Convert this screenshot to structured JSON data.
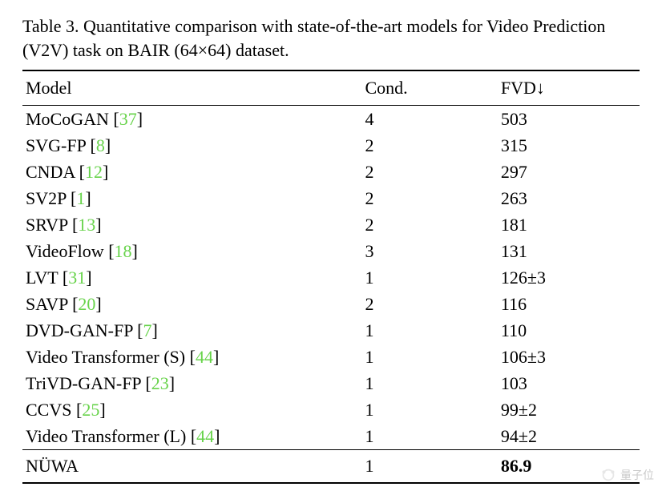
{
  "caption": {
    "prefix": "Table 3.",
    "text": "Quantitative comparison with state-of-the-art models for Video Prediction (V2V) task on BAIR (64×64) dataset."
  },
  "columns": {
    "model": "Model",
    "cond": "Cond.",
    "fvd": "FVD↓"
  },
  "ref_color": "#67d34a",
  "text_color": "#000000",
  "background_color": "#ffffff",
  "font_family": "Times New Roman",
  "font_size_pt": 16,
  "column_widths_pct": [
    55,
    22,
    23
  ],
  "rows": [
    {
      "model": "MoCoGAN",
      "ref": "37",
      "cond": "4",
      "fvd": "503"
    },
    {
      "model": "SVG-FP",
      "ref": "8",
      "cond": "2",
      "fvd": "315"
    },
    {
      "model": "CNDA",
      "ref": "12",
      "cond": "2",
      "fvd": "297"
    },
    {
      "model": "SV2P",
      "ref": "1",
      "cond": "2",
      "fvd": "263"
    },
    {
      "model": "SRVP",
      "ref": "13",
      "cond": "2",
      "fvd": "181"
    },
    {
      "model": "VideoFlow",
      "ref": "18",
      "cond": "3",
      "fvd": "131"
    },
    {
      "model": "LVT",
      "ref": "31",
      "cond": "1",
      "fvd": "126±3"
    },
    {
      "model": "SAVP",
      "ref": "20",
      "cond": "2",
      "fvd": "116"
    },
    {
      "model": "DVD-GAN-FP",
      "ref": "7",
      "cond": "1",
      "fvd": "110"
    },
    {
      "model": "Video Transformer (S)",
      "ref": "44",
      "cond": "1",
      "fvd": "106±3"
    },
    {
      "model": "TriVD-GAN-FP",
      "ref": "23",
      "cond": "1",
      "fvd": "103"
    },
    {
      "model": "CCVS",
      "ref": "25",
      "cond": "1",
      "fvd": "99±2"
    },
    {
      "model": "Video Transformer (L)",
      "ref": "44",
      "cond": "1",
      "fvd": "94±2"
    }
  ],
  "highlight_row": {
    "model": "NÜWA",
    "cond": "1",
    "fvd": "86.9",
    "bold_fvd": true
  },
  "watermark": {
    "text": "量子位"
  }
}
